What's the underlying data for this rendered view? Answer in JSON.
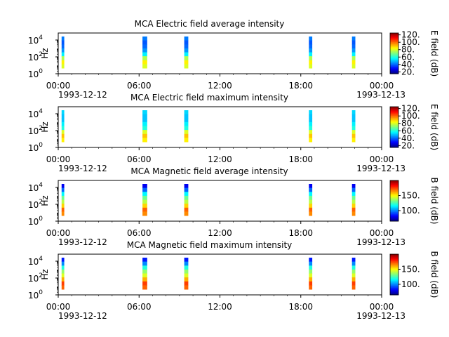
{
  "chart_data": [
    {
      "type": "heatmap",
      "title": "MCA  Electric field average intensity",
      "ylabel": "Hz",
      "y_scale": "log",
      "y_ticks": [
        {
          "exp": "0",
          "label": "10"
        },
        {
          "exp": "2",
          "label": "10"
        },
        {
          "exp": "4",
          "label": "10"
        }
      ],
      "x_ticks": [
        "00:00",
        "06:00",
        "12:00",
        "18:00",
        "00:00"
      ],
      "x_dates": [
        "1993-12-12",
        "1993-12-13"
      ],
      "colorbar_label": "E field (dB)",
      "colorbar_ticks": [
        "20.",
        "40.",
        "60.",
        "80.",
        "100.",
        "120."
      ],
      "colorbar_range": [
        15,
        125
      ],
      "profile": [
        80,
        85,
        75,
        55,
        45,
        40,
        38,
        42
      ],
      "passes": [
        {
          "start_hour": 0.25,
          "end_hour": 0.45
        },
        {
          "start_hour": 6.25,
          "end_hour": 6.6
        },
        {
          "start_hour": 9.35,
          "end_hour": 9.65
        },
        {
          "start_hour": 18.6,
          "end_hour": 18.85
        },
        {
          "start_hour": 21.8,
          "end_hour": 22.05
        }
      ]
    },
    {
      "type": "heatmap",
      "title": "MCA  Electric field maximum intensity",
      "ylabel": "Hz",
      "y_scale": "log",
      "y_ticks": [
        {
          "exp": "0",
          "label": "10"
        },
        {
          "exp": "2",
          "label": "10"
        },
        {
          "exp": "4",
          "label": "10"
        }
      ],
      "x_ticks": [
        "00:00",
        "06:00",
        "12:00",
        "18:00",
        "00:00"
      ],
      "x_dates": [
        "1993-12-12",
        "1993-12-13"
      ],
      "colorbar_label": "E field (dB)",
      "colorbar_ticks": [
        "20.",
        "40.",
        "60.",
        "80.",
        "100.",
        "120."
      ],
      "colorbar_range": [
        15,
        125
      ],
      "profile": [
        85,
        90,
        80,
        60,
        55,
        50,
        50,
        52
      ],
      "passes": [
        {
          "start_hour": 0.25,
          "end_hour": 0.45
        },
        {
          "start_hour": 6.25,
          "end_hour": 6.6
        },
        {
          "start_hour": 9.35,
          "end_hour": 9.65
        },
        {
          "start_hour": 18.6,
          "end_hour": 18.85
        },
        {
          "start_hour": 21.8,
          "end_hour": 22.05
        }
      ]
    },
    {
      "type": "heatmap",
      "title": "MCA  Magnetic field average intensity",
      "ylabel": "Hz",
      "y_scale": "log",
      "y_ticks": [
        {
          "exp": "0",
          "label": "10"
        },
        {
          "exp": "2",
          "label": "10"
        },
        {
          "exp": "4",
          "label": "10"
        }
      ],
      "x_ticks": [
        "00:00",
        "06:00",
        "12:00",
        "18:00",
        "00:00"
      ],
      "x_dates": [
        "1993-12-12",
        "1993-12-13"
      ],
      "colorbar_label": "B field (dB)",
      "colorbar_ticks": [
        "100.",
        "150."
      ],
      "colorbar_range": [
        65,
        200
      ],
      "profile": [
        165,
        170,
        155,
        140,
        130,
        115,
        95,
        80
      ],
      "passes": [
        {
          "start_hour": 0.25,
          "end_hour": 0.45
        },
        {
          "start_hour": 6.25,
          "end_hour": 6.6
        },
        {
          "start_hour": 9.35,
          "end_hour": 9.65
        },
        {
          "start_hour": 18.6,
          "end_hour": 18.85
        },
        {
          "start_hour": 21.8,
          "end_hour": 22.05
        }
      ]
    },
    {
      "type": "heatmap",
      "title": "MCA  Magnetic field maximum intensity",
      "ylabel": "Hz",
      "y_scale": "log",
      "y_ticks": [
        {
          "exp": "0",
          "label": "10"
        },
        {
          "exp": "2",
          "label": "10"
        },
        {
          "exp": "4",
          "label": "10"
        }
      ],
      "x_ticks": [
        "00:00",
        "06:00",
        "12:00",
        "18:00",
        "00:00"
      ],
      "x_dates": [
        "1993-12-12",
        "1993-12-13"
      ],
      "colorbar_label": "B field (dB)",
      "colorbar_ticks": [
        "100.",
        "150."
      ],
      "colorbar_range": [
        65,
        200
      ],
      "profile": [
        170,
        175,
        160,
        145,
        135,
        120,
        100,
        85
      ],
      "passes": [
        {
          "start_hour": 0.25,
          "end_hour": 0.45
        },
        {
          "start_hour": 6.25,
          "end_hour": 6.6
        },
        {
          "start_hour": 9.35,
          "end_hour": 9.65
        },
        {
          "start_hour": 18.6,
          "end_hour": 18.85
        },
        {
          "start_hour": 21.8,
          "end_hour": 22.05
        }
      ]
    }
  ]
}
